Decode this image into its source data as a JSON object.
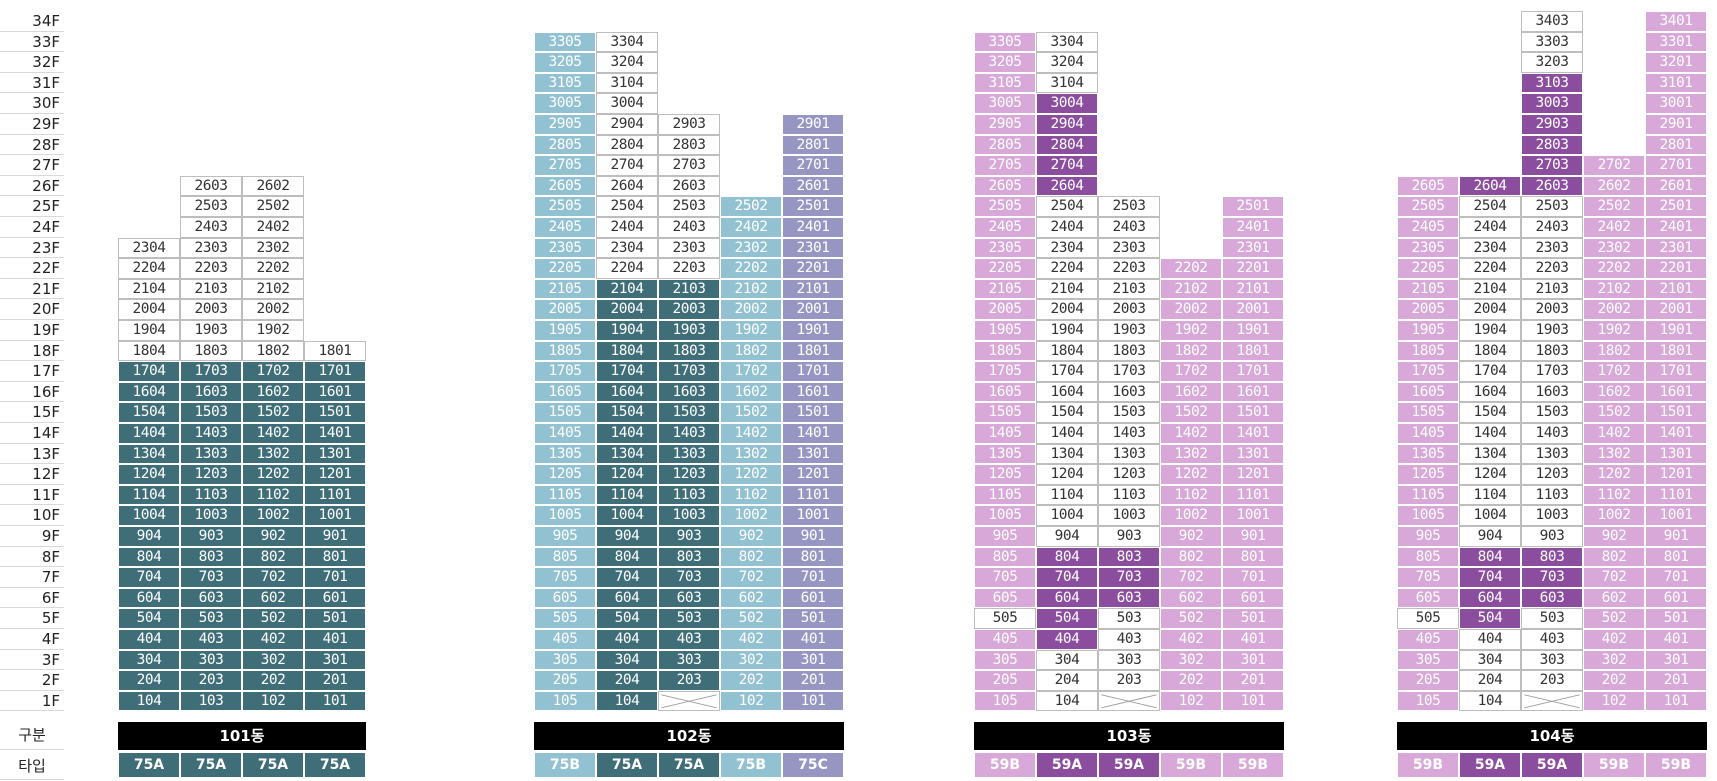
{
  "colors": {
    "75A": "#3f6e78",
    "75B": "#92c1d2",
    "75C": "#9796c3",
    "59A": "#8b4e9f",
    "59B": "#d7a8d8",
    "white": "#ffffff"
  },
  "floor_labels": [
    "34F",
    "33F",
    "32F",
    "31F",
    "30F",
    "29F",
    "28F",
    "27F",
    "26F",
    "25F",
    "24F",
    "23F",
    "22F",
    "21F",
    "20F",
    "19F",
    "18F",
    "17F",
    "16F",
    "15F",
    "14F",
    "13F",
    "12F",
    "11F",
    "10F",
    "9F",
    "8F",
    "7F",
    "6F",
    "5F",
    "4F",
    "3F",
    "2F",
    "1F"
  ],
  "row_labels": {
    "section": "구분",
    "type": "타입"
  },
  "buildings": [
    {
      "name": "101동",
      "columns": [
        {
          "line": "04",
          "type": "75A",
          "max_floor": 23,
          "white": [
            18,
            19,
            20,
            21,
            22,
            23
          ],
          "dark": [],
          "crossed": []
        },
        {
          "line": "03",
          "type": "75A",
          "max_floor": 26,
          "white": [
            18,
            19,
            20,
            21,
            22,
            23,
            24,
            25,
            26
          ],
          "dark": [],
          "crossed": []
        },
        {
          "line": "02",
          "type": "75A",
          "max_floor": 26,
          "white": [
            18,
            19,
            20,
            21,
            22,
            23,
            24,
            25,
            26
          ],
          "dark": [],
          "crossed": []
        },
        {
          "line": "01",
          "type": "75A",
          "max_floor": 18,
          "white": [
            18
          ],
          "dark": [],
          "crossed": []
        }
      ]
    },
    {
      "name": "102동",
      "columns": [
        {
          "line": "05",
          "type": "75B",
          "max_floor": 33,
          "white": [],
          "dark": [],
          "crossed": []
        },
        {
          "line": "04",
          "type": "75A",
          "max_floor": 33,
          "white": [
            22,
            23,
            24,
            25,
            26,
            27,
            28,
            29,
            30,
            31,
            32,
            33
          ],
          "dark": [],
          "crossed": []
        },
        {
          "line": "03",
          "type": "75A",
          "max_floor": 29,
          "white": [
            22,
            23,
            24,
            25,
            26,
            27,
            28,
            29
          ],
          "dark": [],
          "crossed": [
            1
          ]
        },
        {
          "line": "02",
          "type": "75B",
          "max_floor": 25,
          "white": [],
          "dark": [],
          "crossed": []
        },
        {
          "line": "01",
          "type": "75C",
          "max_floor": 29,
          "white": [],
          "dark": [],
          "crossed": []
        }
      ]
    },
    {
      "name": "103동",
      "columns": [
        {
          "line": "05",
          "type": "59B",
          "max_floor": 33,
          "white": [
            5
          ],
          "dark": [],
          "crossed": []
        },
        {
          "line": "04",
          "type": "59A",
          "max_floor": 33,
          "white": [
            1,
            2,
            3,
            9,
            10,
            11,
            12,
            13,
            14,
            15,
            16,
            17,
            18,
            19,
            20,
            21,
            22,
            23,
            24,
            25,
            31,
            32,
            33
          ],
          "dark": [
            4,
            5,
            6,
            7,
            8,
            26,
            27,
            28,
            29,
            30
          ],
          "crossed": []
        },
        {
          "line": "03",
          "type": "59A",
          "max_floor": 25,
          "white": [
            2,
            3,
            4,
            5,
            9,
            10,
            11,
            12,
            13,
            14,
            15,
            16,
            17,
            18,
            19,
            20,
            21,
            22,
            23,
            24,
            25
          ],
          "dark": [
            6,
            7,
            8
          ],
          "crossed": [
            1
          ]
        },
        {
          "line": "02",
          "type": "59B",
          "max_floor": 22,
          "white": [],
          "dark": [],
          "crossed": []
        },
        {
          "line": "01",
          "type": "59B",
          "max_floor": 25,
          "white": [],
          "dark": [],
          "crossed": []
        }
      ]
    },
    {
      "name": "104동",
      "columns": [
        {
          "line": "05",
          "type": "59B",
          "max_floor": 26,
          "white": [
            5
          ],
          "dark": [],
          "crossed": []
        },
        {
          "line": "04",
          "type": "59A",
          "max_floor": 26,
          "white": [
            1,
            2,
            3,
            4,
            9,
            10,
            11,
            12,
            13,
            14,
            15,
            16,
            17,
            18,
            19,
            20,
            21,
            22,
            23,
            24,
            25
          ],
          "dark": [
            5,
            6,
            7,
            8,
            26
          ],
          "crossed": []
        },
        {
          "line": "03",
          "type": "59A",
          "max_floor": 34,
          "white": [
            2,
            3,
            4,
            5,
            9,
            10,
            11,
            12,
            13,
            14,
            15,
            16,
            17,
            18,
            19,
            20,
            21,
            22,
            23,
            24,
            25,
            32,
            33,
            34
          ],
          "dark": [
            6,
            7,
            8,
            26,
            27,
            28,
            29,
            30,
            31
          ],
          "crossed": [
            1
          ]
        },
        {
          "line": "02",
          "type": "59B",
          "max_floor": 27,
          "white": [],
          "dark": [],
          "crossed": []
        },
        {
          "line": "01",
          "type": "59B",
          "max_floor": 34,
          "white": [],
          "dark": [],
          "crossed": []
        }
      ]
    }
  ]
}
